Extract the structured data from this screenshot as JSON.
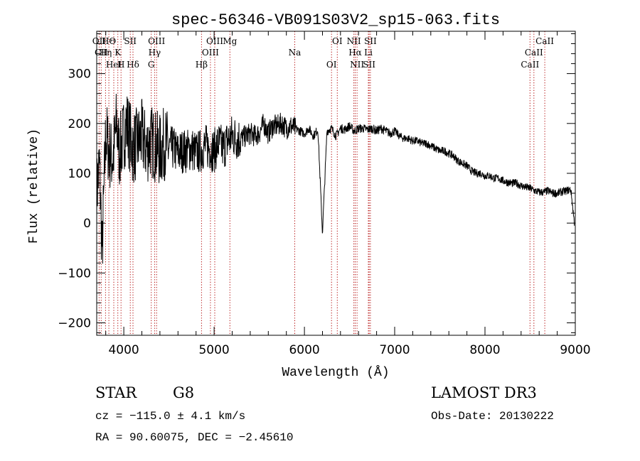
{
  "chart_data": {
    "type": "line",
    "title": "spec-56346-VB091S03V2_sp15-063.fits",
    "xlabel": "Wavelength (Å)",
    "ylabel": "Flux (relative)",
    "xlim": [
      3700,
      9000
    ],
    "ylim": [
      -225,
      385
    ],
    "xticks": [
      4000,
      5000,
      6000,
      7000,
      8000,
      9000
    ],
    "xtick_labels": [
      "4000",
      "5000",
      "6000",
      "7000",
      "8000",
      "9000"
    ],
    "yticks": [
      -200,
      -100,
      0,
      100,
      200,
      300
    ],
    "ytick_labels": [
      "−200",
      "−100",
      "0",
      "100",
      "200",
      "300"
    ],
    "grid": false,
    "series": [
      {
        "name": "flux",
        "x": [
          3700,
          3730,
          3760,
          3800,
          3840,
          3880,
          3920,
          3950,
          3990,
          4030,
          4060,
          4100,
          4150,
          4200,
          4250,
          4300,
          4350,
          4400,
          4450,
          4500,
          4550,
          4600,
          4650,
          4700,
          4750,
          4800,
          4850,
          4900,
          4950,
          5000,
          5050,
          5100,
          5150,
          5200,
          5250,
          5300,
          5350,
          5400,
          5450,
          5500,
          5550,
          5600,
          5650,
          5700,
          5750,
          5800,
          5850,
          5900,
          5950,
          6000,
          6050,
          6100,
          6150,
          6200,
          6250,
          6300,
          6350,
          6400,
          6450,
          6500,
          6550,
          6600,
          6650,
          6700,
          6750,
          6800,
          6850,
          6900,
          6950,
          7000,
          7050,
          7100,
          7150,
          7200,
          7250,
          7300,
          7350,
          7400,
          7450,
          7500,
          7550,
          7600,
          7650,
          7700,
          7750,
          7800,
          7850,
          7900,
          7950,
          8000,
          8050,
          8100,
          8150,
          8200,
          8250,
          8300,
          8350,
          8400,
          8450,
          8500,
          8550,
          8600,
          8650,
          8700,
          8750,
          8800,
          8850,
          8900,
          8950,
          8990
        ],
        "values": [
          60,
          120,
          -60,
          180,
          140,
          130,
          200,
          140,
          170,
          200,
          180,
          150,
          160,
          175,
          150,
          165,
          155,
          145,
          160,
          150,
          150,
          140,
          145,
          145,
          150,
          140,
          145,
          155,
          150,
          145,
          160,
          150,
          165,
          175,
          170,
          170,
          175,
          180,
          175,
          180,
          200,
          180,
          195,
          195,
          200,
          190,
          195,
          190,
          185,
          180,
          190,
          175,
          188,
          -20,
          185,
          190,
          175,
          190,
          188,
          195,
          185,
          190,
          190,
          188,
          190,
          185,
          190,
          185,
          180,
          185,
          175,
          170,
          170,
          165,
          165,
          160,
          160,
          155,
          150,
          145,
          145,
          140,
          135,
          125,
          120,
          115,
          105,
          100,
          100,
          95,
          95,
          90,
          90,
          85,
          82,
          80,
          80,
          75,
          72,
          70,
          65,
          62,
          62,
          65,
          60,
          60,
          63,
          65,
          68,
          0
        ],
        "color": "#000000"
      }
    ],
    "line_markers": [
      {
        "label": "HΘ",
        "x": 3835
      },
      {
        "label": "K",
        "x": 3934
      },
      {
        "label": "Hδ",
        "x": 4102
      },
      {
        "label": "OII",
        "x": 3727
      },
      {
        "label": "CII",
        "x": 3750
      },
      {
        "label": "HeI",
        "x": 3889
      },
      {
        "label": "SII",
        "x": 4072
      },
      {
        "label": "Hη",
        "x": 3798
      },
      {
        "label": "H",
        "x": 3969
      },
      {
        "label": "OIII",
        "x": 4363
      },
      {
        "label": "Hγ",
        "x": 4341
      },
      {
        "label": "G",
        "x": 4304
      },
      {
        "label": "OIII",
        "x": 5007
      },
      {
        "label": "OIII",
        "x": 4959
      },
      {
        "label": "Hβ",
        "x": 4861
      },
      {
        "label": "Mg",
        "x": 5175
      },
      {
        "label": "Na",
        "x": 5893
      },
      {
        "label": "OI",
        "x": 6300
      },
      {
        "label": "OI",
        "x": 6364
      },
      {
        "label": "Hα",
        "x": 6563
      },
      {
        "label": "SII",
        "x": 6717
      },
      {
        "label": "NII",
        "x": 6548
      },
      {
        "label": "Li",
        "x": 6708
      },
      {
        "label": "NII",
        "x": 6583
      },
      {
        "label": "SII",
        "x": 6731
      },
      {
        "label": "CaII",
        "x": 8542
      },
      {
        "label": "CaII",
        "x": 8498
      },
      {
        "label": "CaII",
        "x": 8662
      }
    ]
  },
  "footer": {
    "object_class": "STAR",
    "subclass": "G8",
    "redshift": "cz = −115.0 ± 4.1 km/s",
    "coordinates": "RA =  90.60075, DEC =  −2.45610",
    "survey": "LAMOST DR3",
    "obs_date": "Obs-Date: 20130222"
  }
}
